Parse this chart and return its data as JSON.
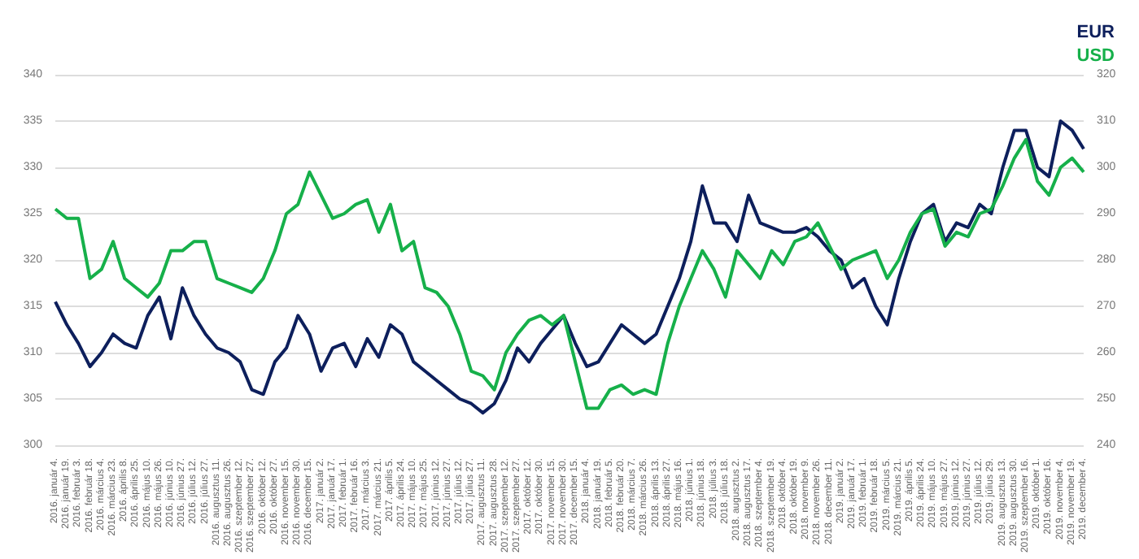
{
  "chart_data": {
    "type": "line",
    "categories": [
      "2016. január 4.",
      "2016. január 19.",
      "2016. február 3.",
      "2016. február 18.",
      "2016. március 4.",
      "2016. március 23.",
      "2016. április 8.",
      "2016. április 25.",
      "2016. május 10.",
      "2016. május 26.",
      "2016. június 10.",
      "2016. június 27.",
      "2016. július 12.",
      "2016. július 27.",
      "2016. augusztus 11.",
      "2016. augusztus 26.",
      "2016. szeptember 12.",
      "2016. szeptember 27.",
      "2016. október 12.",
      "2016. október 27.",
      "2016. november 15.",
      "2016. november 30.",
      "2016. december 15.",
      "2017. január 2.",
      "2017. január 17.",
      "2017. február 1.",
      "2017. február 16.",
      "2017. március 3.",
      "2017. március 21.",
      "2017. április 5.",
      "2017. április 24.",
      "2017. május 10.",
      "2017. május 25.",
      "2017. június 12.",
      "2017. június 27.",
      "2017. július 12.",
      "2017. július 27.",
      "2017. augusztus 11.",
      "2017. augusztus 28.",
      "2017. szeptember 12.",
      "2017. szeptember 27.",
      "2017. október 12.",
      "2017. október 30.",
      "2017. november 15.",
      "2017. november 30.",
      "2017. december 15.",
      "2018. január 4.",
      "2018. január 19.",
      "2018. február 5.",
      "2018. február 20.",
      "2018. március 7.",
      "2018. március 26.",
      "2018. április 13.",
      "2018. április 27.",
      "2018. május 16.",
      "2018. június 1.",
      "2018. június 18.",
      "2018. július 3.",
      "2018. július 18.",
      "2018. augusztus 2.",
      "2018. augusztus 17.",
      "2018. szeptember 4.",
      "2018. szeptember 19.",
      "2018. október 4.",
      "2018. október 19.",
      "2018. november 9.",
      "2018. november 26.",
      "2018. december 11.",
      "2019. január 2.",
      "2019. január 17.",
      "2019. február 1.",
      "2019. február 18.",
      "2019. március 5.",
      "2019. március 21.",
      "2019. április 5.",
      "2019. április 24.",
      "2019. május 10.",
      "2019. május 27.",
      "2019. június 12.",
      "2019. június 27.",
      "2019. július 12.",
      "2019. július 29.",
      "2019. augusztus 13.",
      "2019. augusztus 30.",
      "2019. szeptember 16.",
      "2019. október 1.",
      "2019. október 16.",
      "2019. november 4.",
      "2019. november 19.",
      "2019. december 4."
    ],
    "series": [
      {
        "name": "EUR",
        "color": "#0d1f5c",
        "values": [
          315.5,
          313,
          311,
          308.5,
          310,
          312,
          311,
          310.5,
          314,
          316,
          311.5,
          317,
          314,
          312,
          310.5,
          310,
          309,
          306,
          305.5,
          309,
          310.5,
          314,
          312,
          308,
          310.5,
          311,
          308.5,
          311.5,
          309.5,
          313,
          312,
          309,
          308,
          307,
          306,
          305,
          304.5,
          303.5,
          304.5,
          307,
          310.5,
          309,
          311,
          312.5,
          314,
          311,
          308.5,
          309,
          311,
          313,
          312,
          311,
          312,
          315,
          318,
          322,
          328,
          324,
          324,
          322,
          327,
          324,
          323.5,
          323,
          323,
          323.5,
          322.5,
          321,
          320,
          317,
          318,
          315,
          313,
          318,
          322,
          325,
          326,
          322,
          324,
          323.5,
          326,
          325,
          330,
          334,
          334,
          330,
          329,
          335,
          334,
          332
        ]
      },
      {
        "name": "USD",
        "color": "#16b04a",
        "axis": "y2",
        "values": [
          291,
          289,
          289,
          276,
          278,
          284,
          276,
          274,
          272,
          275,
          282,
          282,
          284,
          284,
          276,
          275,
          274,
          273,
          276,
          282,
          290,
          292,
          299,
          294,
          289,
          290,
          292,
          293,
          286,
          292,
          282,
          284,
          274,
          273,
          270,
          264,
          256,
          255,
          252,
          260,
          264,
          267,
          268,
          266,
          268,
          258,
          248,
          248,
          252,
          253,
          251,
          252,
          251,
          262,
          270,
          276,
          282,
          278,
          272,
          282,
          279,
          276,
          282,
          279,
          284,
          285,
          288,
          283,
          278,
          280,
          281,
          282,
          276,
          280,
          286,
          290,
          291,
          283,
          286,
          285,
          290,
          291,
          296,
          302,
          306,
          297,
          294,
          300,
          302,
          299
        ]
      }
    ],
    "ylim": [
      300,
      340
    ],
    "yticks": [
      300,
      305,
      310,
      315,
      320,
      325,
      330,
      335,
      340
    ],
    "y2lim": [
      240,
      320
    ],
    "y2ticks": [
      240,
      250,
      260,
      270,
      280,
      290,
      300,
      310,
      320
    ],
    "grid": "y",
    "legend": "top right",
    "marker": "none",
    "line_style": "solid"
  }
}
